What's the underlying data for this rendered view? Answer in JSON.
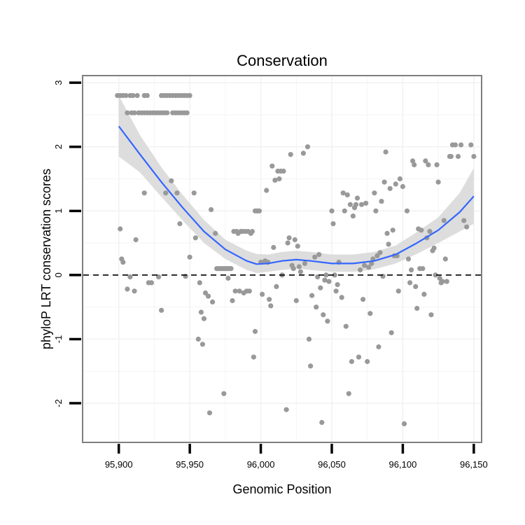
{
  "chart_data": {
    "type": "scatter",
    "title": "Conservation",
    "xlabel": "Genomic Position",
    "ylabel": "phyloP LRT conservation scores",
    "xlim": [
      95875,
      96155
    ],
    "ylim": [
      -2.6,
      3.1
    ],
    "x_ticks": [
      95900,
      95950,
      96000,
      96050,
      96100,
      96150
    ],
    "x_tick_labels": [
      "95,900",
      "95,950",
      "96,000",
      "96,050",
      "96,100",
      "96,150"
    ],
    "y_ticks": [
      -2,
      -1,
      0,
      1,
      2,
      3
    ],
    "y_tick_labels": [
      "-2",
      "-1",
      "0",
      "1",
      "2",
      "3"
    ],
    "grid": true,
    "reference_line": {
      "y": 0,
      "style": "dashed"
    },
    "colors": {
      "points": "#999999",
      "smooth": "#3366ff",
      "ribbon": "#d9d9d9",
      "border": "#7f7f7f",
      "grid": "#f2f2f2"
    },
    "points": [
      [
        95899,
        2.8
      ],
      [
        95901,
        2.8
      ],
      [
        95903,
        2.8
      ],
      [
        95905,
        2.8
      ],
      [
        95908,
        2.8
      ],
      [
        95910,
        2.8
      ],
      [
        95913,
        2.8
      ],
      [
        95918,
        2.8
      ],
      [
        95920,
        2.8
      ],
      [
        95930,
        2.8
      ],
      [
        95932,
        2.8
      ],
      [
        95934,
        2.8
      ],
      [
        95936,
        2.8
      ],
      [
        95938,
        2.8
      ],
      [
        95940,
        2.8
      ],
      [
        95942,
        2.8
      ],
      [
        95944,
        2.8
      ],
      [
        95946,
        2.8
      ],
      [
        95948,
        2.8
      ],
      [
        95950,
        2.8
      ],
      [
        95906,
        2.53
      ],
      [
        95909,
        2.53
      ],
      [
        95911,
        2.53
      ],
      [
        95914,
        2.53
      ],
      [
        95916,
        2.53
      ],
      [
        95918,
        2.53
      ],
      [
        95920,
        2.53
      ],
      [
        95922,
        2.53
      ],
      [
        95924,
        2.53
      ],
      [
        95926,
        2.53
      ],
      [
        95928,
        2.53
      ],
      [
        95930,
        2.53
      ],
      [
        95932,
        2.53
      ],
      [
        95934,
        2.53
      ],
      [
        95938,
        2.53
      ],
      [
        95940,
        2.53
      ],
      [
        95942,
        2.53
      ],
      [
        95944,
        2.53
      ],
      [
        95946,
        2.53
      ],
      [
        95948,
        2.53
      ],
      [
        95901,
        0.72
      ],
      [
        95902,
        0.25
      ],
      [
        95903,
        0.2
      ],
      [
        95906,
        -0.22
      ],
      [
        95908,
        -0.03
      ],
      [
        95911,
        -0.25
      ],
      [
        95912,
        0.55
      ],
      [
        95918,
        1.28
      ],
      [
        95921,
        -0.12
      ],
      [
        95923,
        -0.12
      ],
      [
        95928,
        -0.03
      ],
      [
        95930,
        -0.55
      ],
      [
        95933,
        1.28
      ],
      [
        95937,
        1.47
      ],
      [
        95941,
        1.28
      ],
      [
        95943,
        0.8
      ],
      [
        95947,
        -0.02
      ],
      [
        95950,
        0.28
      ],
      [
        95953,
        1.28
      ],
      [
        95954,
        0.58
      ],
      [
        95956,
        -1.0
      ],
      [
        95957,
        -0.12
      ],
      [
        95958,
        -0.58
      ],
      [
        95959,
        -1.08
      ],
      [
        95960,
        -0.68
      ],
      [
        95961,
        -0.28
      ],
      [
        95963,
        -0.33
      ],
      [
        95964,
        -2.15
      ],
      [
        95965,
        1.02
      ],
      [
        95966,
        -0.42
      ],
      [
        95968,
        0.65
      ],
      [
        95969,
        0.1
      ],
      [
        95970,
        0.1
      ],
      [
        95971,
        0.1
      ],
      [
        95972,
        0.1
      ],
      [
        95973,
        0.1
      ],
      [
        95974,
        0.1
      ],
      [
        95975,
        0.1
      ],
      [
        95976,
        0.1
      ],
      [
        95977,
        0.1
      ],
      [
        95978,
        0.1
      ],
      [
        95979,
        0.1
      ],
      [
        95974,
        -1.85
      ],
      [
        95977,
        -0.05
      ],
      [
        95980,
        -0.4
      ],
      [
        95981,
        0.68
      ],
      [
        95982,
        -0.25
      ],
      [
        95983,
        0.68
      ],
      [
        95984,
        0.65
      ],
      [
        95985,
        -0.25
      ],
      [
        95986,
        0.68
      ],
      [
        95987,
        0.68
      ],
      [
        95988,
        -0.28
      ],
      [
        95989,
        0.68
      ],
      [
        95990,
        -0.25
      ],
      [
        95991,
        0.68
      ],
      [
        95992,
        -0.25
      ],
      [
        95993,
        0.65
      ],
      [
        95994,
        0.68
      ],
      [
        95995,
        -1.28
      ],
      [
        95996,
        -0.88
      ],
      [
        95996,
        1.0
      ],
      [
        95997,
        1.0
      ],
      [
        95998,
        1.0
      ],
      [
        95999,
        1.0
      ],
      [
        96000,
        0.2
      ],
      [
        96001,
        -0.3
      ],
      [
        96003,
        0.22
      ],
      [
        96004,
        1.32
      ],
      [
        96005,
        0.2
      ],
      [
        96006,
        -0.38
      ],
      [
        96007,
        -0.48
      ],
      [
        96008,
        1.7
      ],
      [
        96009,
        0.43
      ],
      [
        96010,
        1.48
      ],
      [
        96011,
        -0.18
      ],
      [
        96012,
        1.62
      ],
      [
        96013,
        1.5
      ],
      [
        96014,
        1.62
      ],
      [
        96015,
        0.0
      ],
      [
        96016,
        1.62
      ],
      [
        96018,
        -2.1
      ],
      [
        96019,
        0.5
      ],
      [
        96020,
        0.58
      ],
      [
        96021,
        1.88
      ],
      [
        96022,
        0.15
      ],
      [
        96023,
        0.1
      ],
      [
        96024,
        0.55
      ],
      [
        96025,
        -0.4
      ],
      [
        96026,
        0.45
      ],
      [
        96027,
        0.13
      ],
      [
        96028,
        0.05
      ],
      [
        96030,
        1.9
      ],
      [
        96031,
        0.18
      ],
      [
        96033,
        2.0
      ],
      [
        96034,
        -1.0
      ],
      [
        96035,
        -1.42
      ],
      [
        96036,
        -0.32
      ],
      [
        96038,
        0.28
      ],
      [
        96039,
        -0.5
      ],
      [
        96040,
        -0.03
      ],
      [
        96041,
        0.32
      ],
      [
        96042,
        -0.2
      ],
      [
        96043,
        -2.3
      ],
      [
        96044,
        -0.62
      ],
      [
        96045,
        -0.08
      ],
      [
        96046,
        0.0
      ],
      [
        96047,
        -0.72
      ],
      [
        96048,
        -0.1
      ],
      [
        96050,
        1.0
      ],
      [
        96051,
        0.8
      ],
      [
        96052,
        0.0
      ],
      [
        96053,
        -0.25
      ],
      [
        96054,
        -0.15
      ],
      [
        96055,
        0.2
      ],
      [
        96057,
        -0.35
      ],
      [
        96058,
        1.28
      ],
      [
        96059,
        1.0
      ],
      [
        96060,
        -0.8
      ],
      [
        96061,
        1.25
      ],
      [
        96062,
        -1.85
      ],
      [
        96063,
        1.1
      ],
      [
        96064,
        -1.35
      ],
      [
        96065,
        0.92
      ],
      [
        96066,
        1.05
      ],
      [
        96067,
        1.1
      ],
      [
        96068,
        1.2
      ],
      [
        96069,
        -1.28
      ],
      [
        96070,
        0.08
      ],
      [
        96071,
        1.1
      ],
      [
        96072,
        -0.38
      ],
      [
        96073,
        0.15
      ],
      [
        96074,
        1.12
      ],
      [
        96075,
        -1.35
      ],
      [
        96076,
        0.12
      ],
      [
        96077,
        -0.6
      ],
      [
        96078,
        0.18
      ],
      [
        96079,
        0.25
      ],
      [
        96080,
        1.28
      ],
      [
        96081,
        1.0
      ],
      [
        96082,
        0.3
      ],
      [
        96083,
        -1.12
      ],
      [
        96084,
        0.35
      ],
      [
        96085,
        1.15
      ],
      [
        96086,
        -0.02
      ],
      [
        96087,
        1.45
      ],
      [
        96088,
        1.92
      ],
      [
        96089,
        0.65
      ],
      [
        96090,
        0.48
      ],
      [
        96091,
        1.35
      ],
      [
        96092,
        -0.9
      ],
      [
        96093,
        0.7
      ],
      [
        96094,
        0.3
      ],
      [
        96095,
        1.42
      ],
      [
        96096,
        0.3
      ],
      [
        96097,
        -0.25
      ],
      [
        96098,
        1.5
      ],
      [
        96100,
        1.38
      ],
      [
        96101,
        -2.32
      ],
      [
        96103,
        1.0
      ],
      [
        96104,
        0.25
      ],
      [
        96105,
        -0.12
      ],
      [
        96106,
        0.08
      ],
      [
        96107,
        1.78
      ],
      [
        96108,
        1.72
      ],
      [
        96109,
        -0.18
      ],
      [
        96110,
        -0.52
      ],
      [
        96111,
        0.72
      ],
      [
        96112,
        0.1
      ],
      [
        96113,
        0.7
      ],
      [
        96114,
        0.1
      ],
      [
        96115,
        -0.3
      ],
      [
        96116,
        1.78
      ],
      [
        96117,
        0.58
      ],
      [
        96118,
        1.72
      ],
      [
        96119,
        0.68
      ],
      [
        96120,
        -0.62
      ],
      [
        96121,
        0.38
      ],
      [
        96122,
        0.42
      ],
      [
        96123,
        0.0
      ],
      [
        96124,
        1.72
      ],
      [
        96125,
        1.45
      ],
      [
        96126,
        -0.05
      ],
      [
        96127,
        -0.12
      ],
      [
        96128,
        -0.1
      ],
      [
        96129,
        0.85
      ],
      [
        96130,
        0.25
      ],
      [
        96131,
        -0.1
      ],
      [
        96133,
        1.85
      ],
      [
        96134,
        1.85
      ],
      [
        96135,
        2.03
      ],
      [
        96137,
        2.03
      ],
      [
        96139,
        1.85
      ],
      [
        96141,
        2.03
      ],
      [
        96143,
        0.85
      ],
      [
        96145,
        0.75
      ],
      [
        96148,
        2.03
      ],
      [
        96150,
        1.85
      ]
    ],
    "smooth": {
      "x": [
        95900,
        95915,
        95930,
        95945,
        95960,
        95975,
        95990,
        95997,
        96005,
        96015,
        96025,
        96035,
        96050,
        96065,
        96080,
        96095,
        96110,
        96125,
        96140,
        96150
      ],
      "y": [
        2.32,
        1.88,
        1.45,
        1.05,
        0.68,
        0.4,
        0.22,
        0.17,
        0.18,
        0.22,
        0.24,
        0.22,
        0.18,
        0.18,
        0.22,
        0.32,
        0.5,
        0.7,
        0.98,
        1.23
      ],
      "lower": [
        1.85,
        1.6,
        1.22,
        0.85,
        0.5,
        0.25,
        0.08,
        0.03,
        0.05,
        0.08,
        0.1,
        0.08,
        0.05,
        0.05,
        0.09,
        0.18,
        0.33,
        0.5,
        0.68,
        0.8
      ],
      "upper": [
        2.8,
        2.18,
        1.68,
        1.25,
        0.86,
        0.55,
        0.38,
        0.33,
        0.32,
        0.36,
        0.38,
        0.36,
        0.32,
        0.32,
        0.36,
        0.46,
        0.67,
        0.9,
        1.28,
        1.67
      ]
    }
  }
}
